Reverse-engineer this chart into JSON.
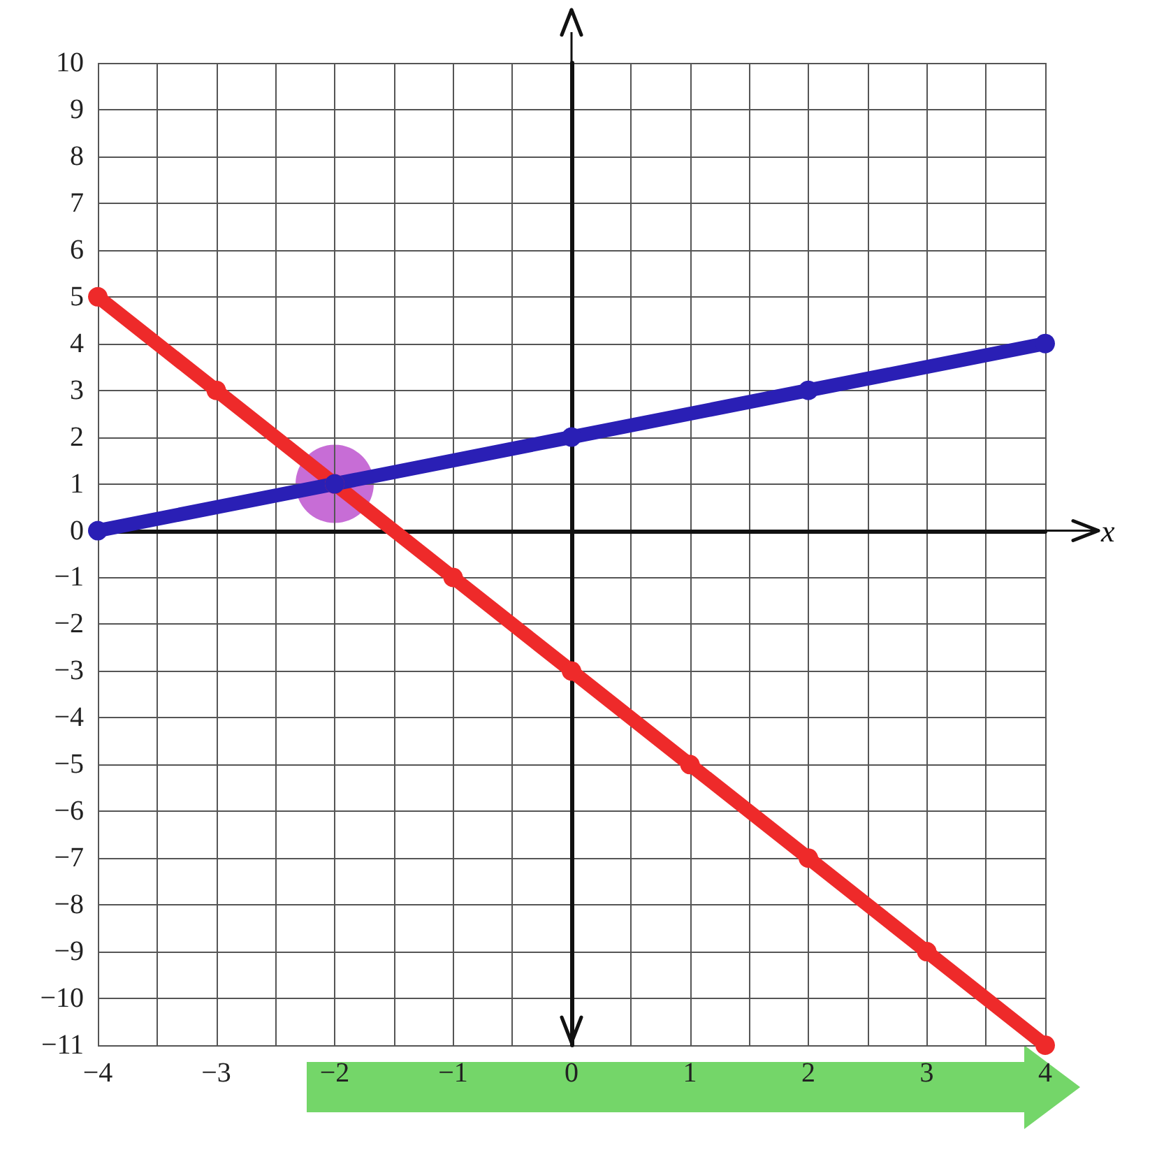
{
  "chart_data": {
    "type": "line",
    "xlabel": "x",
    "xlim": [
      -4,
      4
    ],
    "xticks": [
      -4,
      -3,
      -2,
      -1,
      0,
      1,
      2,
      3,
      4
    ],
    "ylim": [
      -11,
      10
    ],
    "yticks": [
      -11,
      -10,
      -9,
      -8,
      -7,
      -6,
      -5,
      -4,
      -3,
      -2,
      -1,
      0,
      1,
      2,
      3,
      4,
      5,
      6,
      7,
      8,
      9,
      10
    ],
    "grid": true,
    "marker": "circle",
    "line_style": "solid",
    "series": [
      {
        "color": "#ee2a2a",
        "x": [
          -4,
          -3,
          -2,
          -1,
          0,
          1,
          2,
          3,
          4
        ],
        "values": [
          5,
          3,
          1,
          -1,
          -3,
          -5,
          -7,
          -9,
          -11
        ]
      },
      {
        "color": "#2a1fb5",
        "x": [
          -4,
          -2,
          0,
          2,
          4
        ],
        "values": [
          0,
          1,
          2,
          3,
          4
        ]
      }
    ]
  }
}
